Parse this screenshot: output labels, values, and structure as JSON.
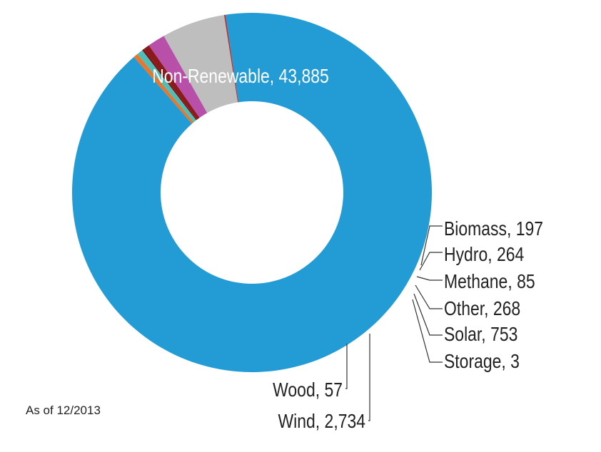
{
  "chart_data": {
    "type": "donut",
    "title": "",
    "unit": "",
    "slices": [
      {
        "label": "Non-Renewable",
        "value": 43885,
        "display": "Non-Renewable, 43,885",
        "color": "#239BD5"
      },
      {
        "label": "Biomass",
        "value": 197,
        "display": "Biomass, 197",
        "color": "#E8762D"
      },
      {
        "label": "Hydro",
        "value": 264,
        "display": "Hydro, 264",
        "color": "#4DBFB8"
      },
      {
        "label": "Methane",
        "value": 85,
        "display": "Methane, 85",
        "color": "#7A1212"
      },
      {
        "label": "Other",
        "value": 268,
        "display": "Other, 268",
        "color": "#8B1A1A"
      },
      {
        "label": "Solar",
        "value": 753,
        "display": "Solar, 753",
        "color": "#B84FA8"
      },
      {
        "label": "Storage",
        "value": 3,
        "display": "Storage, 3",
        "color": "#7F6BA8"
      },
      {
        "label": "Wind",
        "value": 2734,
        "display": "Wind, 2,734",
        "color": "#BEBEBE"
      },
      {
        "label": "Wood",
        "value": 57,
        "display": "Wood, 57",
        "color": "#B5302A"
      }
    ]
  },
  "note": "As of 12/2013"
}
